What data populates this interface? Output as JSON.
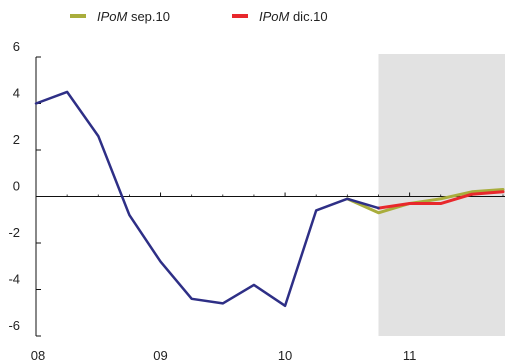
{
  "chart_data": {
    "type": "line",
    "title": "",
    "xlabel": "",
    "ylabel": "",
    "ylim": [
      -6,
      6
    ],
    "yticks": [
      6,
      4,
      2,
      0,
      -2,
      -4,
      -6
    ],
    "xticks": [
      "08",
      "09",
      "10",
      "11"
    ],
    "grid": false,
    "legend_position": "top",
    "forecast_shading": {
      "from": "2010.75",
      "to": "end",
      "color": "#e2e2e2"
    },
    "legend": [
      {
        "italic": "IPoM",
        "suffix": " sep.10",
        "color": "#a9ad3c"
      },
      {
        "italic": "IPoM",
        "suffix": " dic.10",
        "color": "#e8282c"
      }
    ],
    "series": [
      {
        "color": "#2e2f86",
        "x": [
          "2008.00",
          "2008.25",
          "2008.50",
          "2008.75",
          "2009.00",
          "2009.25",
          "2009.50",
          "2009.75",
          "2010.00",
          "2010.25",
          "2010.50",
          "2010.75"
        ],
        "values": [
          4.0,
          4.5,
          2.6,
          -0.8,
          -2.8,
          -4.4,
          -4.6,
          -3.8,
          -4.7,
          -0.6,
          -0.1,
          -0.5
        ]
      },
      {
        "name": "IPoM sep.10",
        "color": "#a9ad3c",
        "x": [
          "2010.50",
          "2010.75",
          "2011.00",
          "2011.25",
          "2011.50",
          "2011.75"
        ],
        "values": [
          -0.1,
          -0.7,
          -0.3,
          -0.1,
          0.2,
          0.3
        ]
      },
      {
        "name": "IPoM dic.10",
        "color": "#e8282c",
        "x": [
          "2010.75",
          "2011.00",
          "2011.25",
          "2011.50",
          "2011.75"
        ],
        "values": [
          -0.5,
          -0.3,
          -0.3,
          0.1,
          0.2
        ]
      }
    ]
  }
}
